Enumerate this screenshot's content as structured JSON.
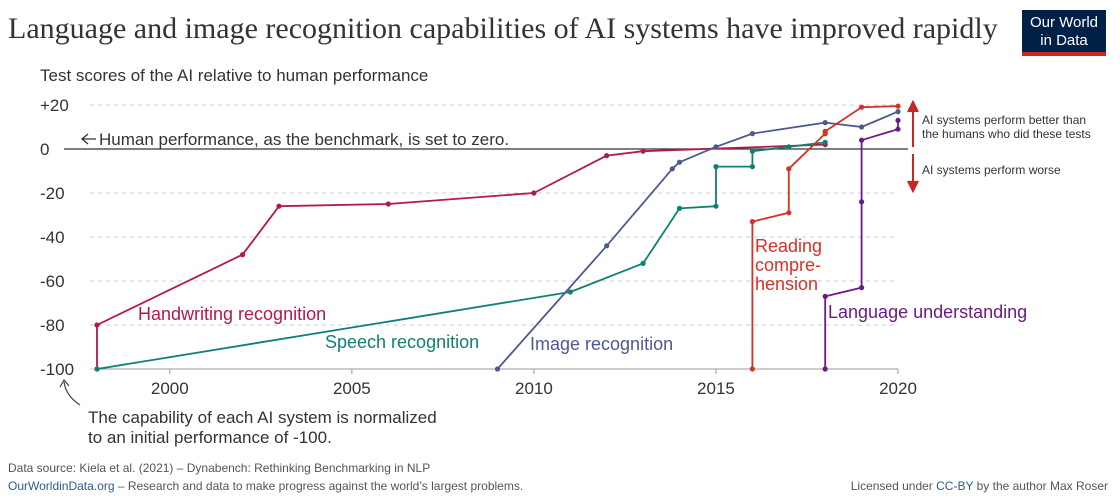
{
  "title": "Language and image recognition capabilities of AI systems have improved rapidly",
  "logo": {
    "line1": "Our World",
    "line2": "in Data"
  },
  "chart_data": {
    "type": "line",
    "subtitle": "Test scores of the AI relative to human performance",
    "xlim": [
      1998,
      2020
    ],
    "ylim": [
      -100,
      20
    ],
    "x_ticks": [
      2000,
      2005,
      2010,
      2015,
      2020
    ],
    "y_ticks": [
      20,
      0,
      -20,
      -40,
      -60,
      -80,
      -100
    ],
    "y_tick_labels": [
      "+20",
      "0",
      "-20",
      "-40",
      "-60",
      "-80",
      "-100"
    ],
    "grid": true,
    "baseline_label": "Human performance, as the benchmark, is set to zero.",
    "annotation_better": "AI systems perform better than the humans who did these tests",
    "annotation_better_lines": [
      "AI systems perform better than",
      "the humans who did these tests"
    ],
    "annotation_worse": "AI systems perform worse",
    "bottom_note_lines": [
      "The capability of each AI system is normalized",
      "to an initial performance of -100."
    ],
    "series": [
      {
        "name": "Handwriting recognition",
        "label_lines": [
          "Handwriting recognition"
        ],
        "color": "#b5184a",
        "points": [
          [
            1998,
            -100
          ],
          [
            1998,
            -80
          ],
          [
            2002,
            -48
          ],
          [
            2003,
            -26
          ],
          [
            2006,
            -25
          ],
          [
            2010,
            -20
          ],
          [
            2012,
            -3
          ],
          [
            2013,
            -1
          ],
          [
            2018,
            2
          ]
        ]
      },
      {
        "name": "Speech recognition",
        "label_lines": [
          "Speech recognition"
        ],
        "color": "#0f8072",
        "points": [
          [
            1998,
            -100
          ],
          [
            2011,
            -65
          ],
          [
            2013,
            -52
          ],
          [
            2014,
            -27
          ],
          [
            2015,
            -26
          ],
          [
            2015,
            -8
          ],
          [
            2016,
            -8
          ],
          [
            2016,
            -1
          ],
          [
            2017,
            1
          ],
          [
            2018,
            3
          ]
        ]
      },
      {
        "name": "Image recognition",
        "label_lines": [
          "Image recognition"
        ],
        "color": "#4c5a8e",
        "points": [
          [
            2009,
            -100
          ],
          [
            2012,
            -44
          ],
          [
            2013.8,
            -9
          ],
          [
            2014,
            -6
          ],
          [
            2015,
            1
          ],
          [
            2016,
            7
          ],
          [
            2018,
            12
          ],
          [
            2019,
            10
          ],
          [
            2020,
            17
          ]
        ]
      },
      {
        "name": "Reading comprehension",
        "label_lines": [
          "Reading",
          "compre-",
          "hension"
        ],
        "color": "#d73027",
        "points": [
          [
            2016,
            -100
          ],
          [
            2016,
            -33
          ],
          [
            2017,
            -29
          ],
          [
            2017,
            -9
          ],
          [
            2018,
            7
          ],
          [
            2018,
            8
          ],
          [
            2019,
            19
          ],
          [
            2020,
            19.5
          ]
        ]
      },
      {
        "name": "Language understanding",
        "label_lines": [
          "Language understanding"
        ],
        "color": "#6a1b87",
        "points": [
          [
            2018,
            -100
          ],
          [
            2018,
            -67
          ],
          [
            2019,
            -63
          ],
          [
            2019,
            -24
          ],
          [
            2019,
            4
          ],
          [
            2020,
            9
          ],
          [
            2020,
            13
          ]
        ]
      }
    ]
  },
  "footer": {
    "source": "Data source: Kiela et al. (2021) – Dynabench: Rethinking Benchmarking in NLP",
    "site": "OurWorldinData.org",
    "site_tagline": " – Research and data to make progress against the world’s largest problems.",
    "license_prefix": "Licensed under ",
    "license_link": "CC-BY",
    "license_suffix": " by the author Max Roser"
  }
}
